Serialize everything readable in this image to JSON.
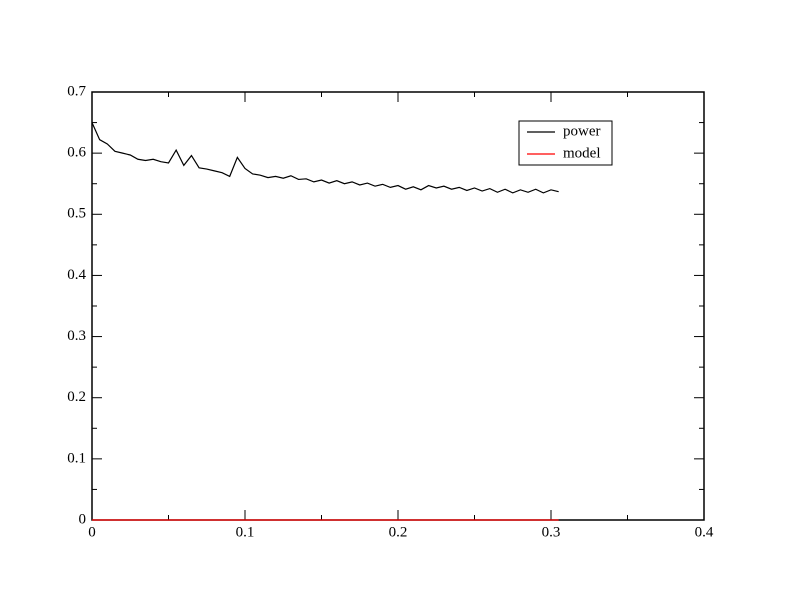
{
  "chart_data": {
    "type": "line",
    "x": [
      0,
      0.005,
      0.01,
      0.015,
      0.02,
      0.025,
      0.03,
      0.035,
      0.04,
      0.045,
      0.05,
      0.055,
      0.06,
      0.065,
      0.07,
      0.075,
      0.08,
      0.085,
      0.09,
      0.095,
      0.1,
      0.105,
      0.11,
      0.115,
      0.12,
      0.125,
      0.13,
      0.135,
      0.14,
      0.145,
      0.15,
      0.155,
      0.16,
      0.165,
      0.17,
      0.175,
      0.18,
      0.185,
      0.19,
      0.195,
      0.2,
      0.205,
      0.21,
      0.215,
      0.22,
      0.225,
      0.23,
      0.235,
      0.24,
      0.245,
      0.25,
      0.255,
      0.26,
      0.265,
      0.27,
      0.275,
      0.28,
      0.285,
      0.29,
      0.295,
      0.3,
      0.305
    ],
    "series": [
      {
        "name": "power",
        "color": "#000000",
        "values": [
          0.65,
          0.622,
          0.615,
          0.603,
          0.6,
          0.597,
          0.59,
          0.588,
          0.59,
          0.586,
          0.584,
          0.605,
          0.58,
          0.596,
          0.576,
          0.574,
          0.571,
          0.568,
          0.562,
          0.593,
          0.575,
          0.566,
          0.564,
          0.56,
          0.562,
          0.559,
          0.563,
          0.557,
          0.558,
          0.553,
          0.556,
          0.551,
          0.555,
          0.55,
          0.553,
          0.548,
          0.551,
          0.546,
          0.549,
          0.544,
          0.547,
          0.541,
          0.545,
          0.54,
          0.547,
          0.543,
          0.546,
          0.541,
          0.544,
          0.539,
          0.543,
          0.538,
          0.542,
          0.536,
          0.541,
          0.535,
          0.54,
          0.536,
          0.541,
          0.535,
          0.54,
          0.537
        ]
      },
      {
        "name": "model",
        "color": "#ff0000",
        "values": [
          0,
          0,
          0,
          0,
          0,
          0,
          0,
          0,
          0,
          0,
          0,
          0,
          0,
          0,
          0,
          0,
          0,
          0,
          0,
          0,
          0,
          0,
          0,
          0,
          0,
          0,
          0,
          0,
          0,
          0,
          0,
          0,
          0,
          0,
          0,
          0,
          0,
          0,
          0,
          0,
          0,
          0,
          0,
          0,
          0,
          0,
          0,
          0,
          0,
          0,
          0,
          0,
          0,
          0,
          0,
          0,
          0,
          0,
          0,
          0,
          0,
          0
        ]
      }
    ],
    "xlim": [
      0,
      0.4
    ],
    "xticks": [
      0,
      0.1,
      0.2,
      0.3,
      0.4
    ],
    "xminorticks": [
      0.05,
      0.15,
      0.25,
      0.35
    ],
    "ylim": [
      0,
      0.7
    ],
    "yticks": [
      0,
      0.1,
      0.2,
      0.3,
      0.4,
      0.5,
      0.6,
      0.7
    ],
    "yminorticks": [
      0.05,
      0.15,
      0.25,
      0.35,
      0.45,
      0.55,
      0.65
    ],
    "grid": false,
    "legend": "upper right"
  }
}
